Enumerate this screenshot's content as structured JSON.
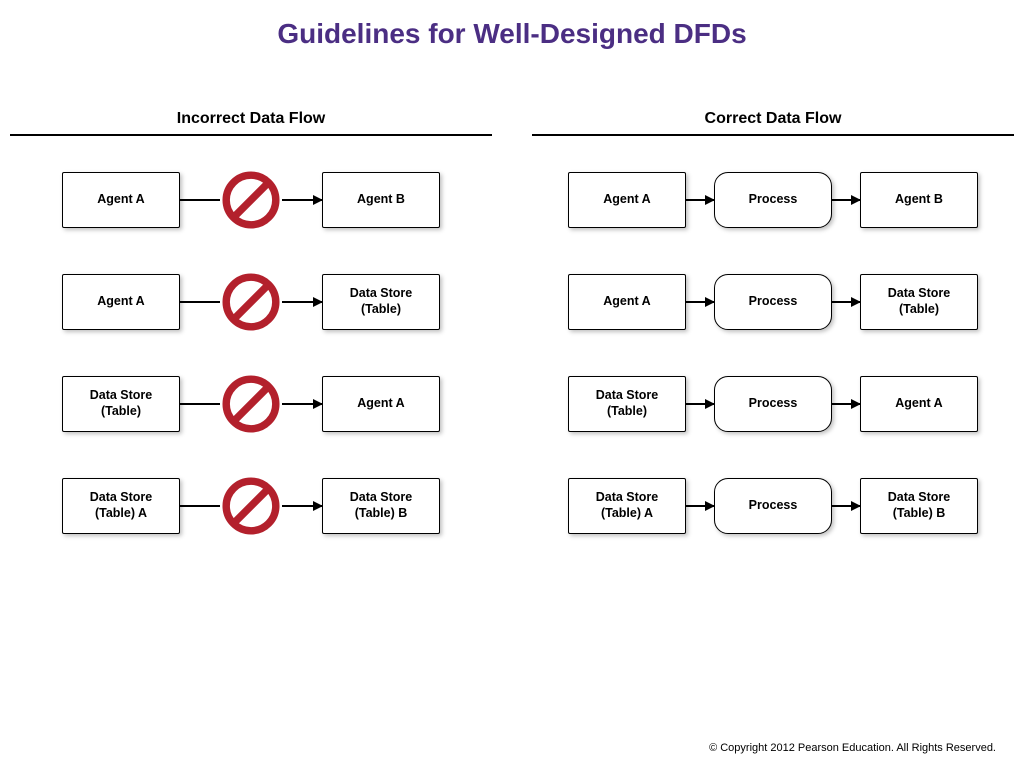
{
  "title": "Guidelines for Well-Designed DFDs",
  "title_color": "#4b2e83",
  "footer": "© Copyright 2012 Pearson Education. All Rights Reserved.",
  "prohibit_color": "#b3202c",
  "node_border_color": "#000000",
  "background_color": "#ffffff",
  "columns": {
    "left": {
      "header": "Incorrect Data Flow",
      "rows": [
        {
          "from": {
            "label": "Agent A",
            "shape": "rect"
          },
          "to": {
            "label": "Agent B",
            "shape": "rect"
          }
        },
        {
          "from": {
            "label": "Agent A",
            "shape": "rect"
          },
          "to": {
            "label": "Data Store\n(Table)",
            "shape": "rect"
          }
        },
        {
          "from": {
            "label": "Data Store\n(Table)",
            "shape": "rect"
          },
          "to": {
            "label": "Agent A",
            "shape": "rect"
          }
        },
        {
          "from": {
            "label": "Data Store\n(Table) A",
            "shape": "rect"
          },
          "to": {
            "label": "Data Store\n(Table) B",
            "shape": "rect"
          }
        }
      ]
    },
    "right": {
      "header": "Correct Data Flow",
      "rows": [
        {
          "from": {
            "label": "Agent A",
            "shape": "rect"
          },
          "mid": {
            "label": "Process",
            "shape": "rounded"
          },
          "to": {
            "label": "Agent B",
            "shape": "rect"
          }
        },
        {
          "from": {
            "label": "Agent A",
            "shape": "rect"
          },
          "mid": {
            "label": "Process",
            "shape": "rounded"
          },
          "to": {
            "label": "Data Store\n(Table)",
            "shape": "rect"
          }
        },
        {
          "from": {
            "label": "Data Store\n(Table)",
            "shape": "rect"
          },
          "mid": {
            "label": "Process",
            "shape": "rounded"
          },
          "to": {
            "label": "Agent A",
            "shape": "rect"
          }
        },
        {
          "from": {
            "label": "Data Store\n(Table) A",
            "shape": "rect"
          },
          "mid": {
            "label": "Process",
            "shape": "rounded"
          },
          "to": {
            "label": "Data Store\n(Table) B",
            "shape": "rect"
          }
        }
      ]
    }
  }
}
